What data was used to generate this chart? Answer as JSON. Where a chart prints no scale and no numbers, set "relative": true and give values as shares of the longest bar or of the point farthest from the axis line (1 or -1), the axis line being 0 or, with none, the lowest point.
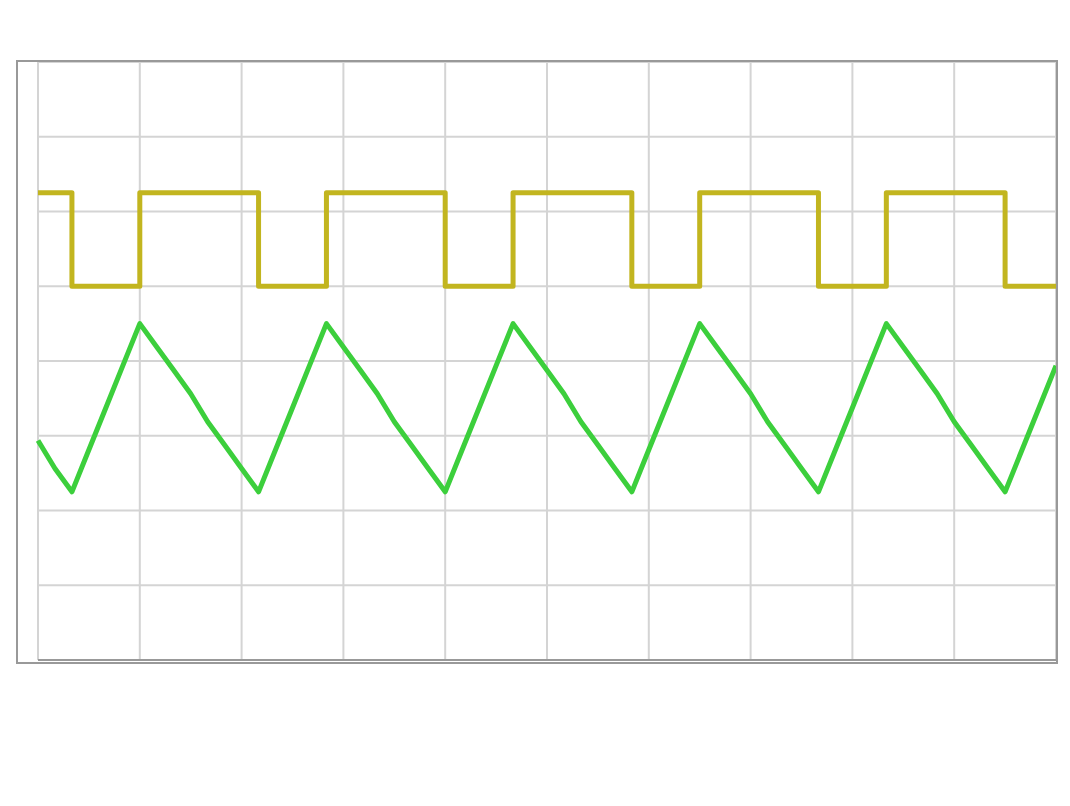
{
  "chart_data": {
    "type": "line",
    "relative": true,
    "grid": true,
    "marker": "none",
    "line_style": "solid",
    "tick_labels": false,
    "categories": [
      null,
      null,
      null,
      null,
      null,
      null,
      null,
      null,
      null,
      null,
      null,
      null,
      null,
      null,
      null,
      null,
      null,
      null,
      null,
      null,
      null,
      null,
      null,
      null,
      null,
      null,
      null,
      null,
      null,
      null,
      null,
      null,
      null,
      null,
      null,
      null,
      null,
      null,
      null,
      null,
      null,
      null,
      null,
      null,
      null,
      null,
      null,
      null,
      null,
      null,
      null,
      null,
      null,
      null,
      null,
      null,
      null,
      null,
      null,
      null,
      null
    ],
    "series": [
      {
        "type": "step",
        "color": "#c2b51f",
        "values": [
          1,
          1,
          0.8,
          0.8,
          0.8,
          0.8,
          1,
          1,
          1,
          1,
          1,
          1,
          1,
          0.8,
          0.8,
          0.8,
          0.8,
          1,
          1,
          1,
          1,
          1,
          1,
          1,
          0.8,
          0.8,
          0.8,
          0.8,
          1,
          1,
          1,
          1,
          1,
          1,
          1,
          0.8,
          0.8,
          0.8,
          0.8,
          1,
          1,
          1,
          1,
          1,
          1,
          1,
          0.8,
          0.8,
          0.8,
          0.8,
          1,
          1,
          1,
          1,
          1,
          1,
          1,
          0.8,
          0.8,
          0.8,
          0.8
        ]
      },
      {
        "color": "#3ccf3c",
        "values": [
          0.47,
          0.41,
          0.36,
          0.45,
          0.54,
          0.63,
          0.72,
          0.67,
          0.62,
          0.57,
          0.51,
          0.46,
          0.41,
          0.36,
          0.45,
          0.54,
          0.63,
          0.72,
          0.67,
          0.62,
          0.57,
          0.51,
          0.46,
          0.41,
          0.36,
          0.45,
          0.54,
          0.63,
          0.72,
          0.67,
          0.62,
          0.57,
          0.51,
          0.46,
          0.41,
          0.36,
          0.45,
          0.54,
          0.63,
          0.72,
          0.67,
          0.62,
          0.57,
          0.51,
          0.46,
          0.41,
          0.36,
          0.45,
          0.54,
          0.63,
          0.72,
          0.67,
          0.62,
          0.57,
          0.51,
          0.46,
          0.41,
          0.36,
          0.45,
          0.54,
          0.63
        ]
      }
    ]
  }
}
